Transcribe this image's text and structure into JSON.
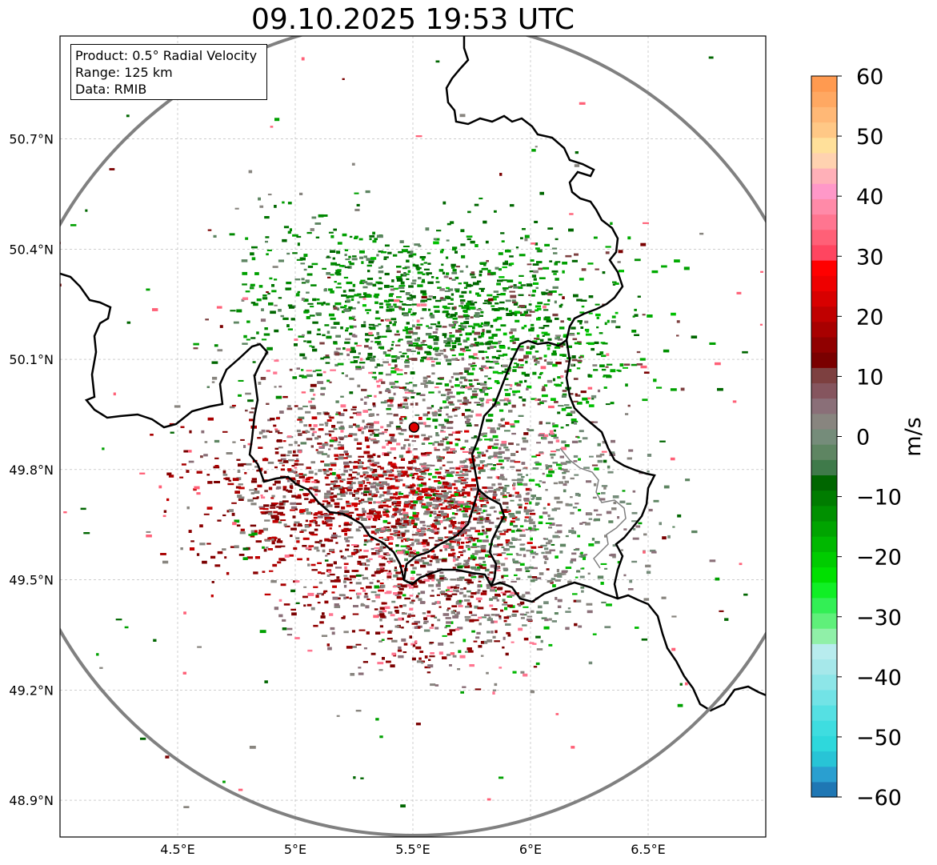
{
  "title": "09.10.2025 19:53 UTC",
  "info": {
    "product": "Product: 0.5° Radial Velocity",
    "range": "Range: 125 km",
    "source": "Data: RMIB"
  },
  "map": {
    "lon_range": [
      4.0,
      7.0
    ],
    "lat_range": [
      48.8,
      50.98
    ],
    "lon_ticks": [
      {
        "value": 4.5,
        "label": "4.5°E"
      },
      {
        "value": 5.0,
        "label": "5°E"
      },
      {
        "value": 5.5,
        "label": "5.5°E"
      },
      {
        "value": 6.0,
        "label": "6°E"
      },
      {
        "value": 6.5,
        "label": "6.5°E"
      }
    ],
    "lat_ticks": [
      {
        "value": 50.7,
        "label": "50.7°N"
      },
      {
        "value": 50.4,
        "label": "50.4°N"
      },
      {
        "value": 50.1,
        "label": "50.1°N"
      },
      {
        "value": 49.8,
        "label": "49.8°N"
      },
      {
        "value": 49.5,
        "label": "49.5°N"
      },
      {
        "value": 49.2,
        "label": "49.2°N"
      },
      {
        "value": 48.9,
        "label": "48.9°N"
      }
    ],
    "radar_site": {
      "lon": 5.505,
      "lat": 49.915
    },
    "range_km": 125
  },
  "colorbar": {
    "label": "m/s",
    "min": -60,
    "max": 60,
    "ticks": [
      {
        "value": 60,
        "label": "60"
      },
      {
        "value": 50,
        "label": "50"
      },
      {
        "value": 40,
        "label": "40"
      },
      {
        "value": 30,
        "label": "30"
      },
      {
        "value": 20,
        "label": "20"
      },
      {
        "value": 10,
        "label": "10"
      },
      {
        "value": 0,
        "label": "0"
      },
      {
        "value": -10,
        "label": "−10"
      },
      {
        "value": -20,
        "label": "−20"
      },
      {
        "value": -30,
        "label": "−30"
      },
      {
        "value": -40,
        "label": "−40"
      },
      {
        "value": -50,
        "label": "−50"
      },
      {
        "value": -60,
        "label": "−60"
      }
    ],
    "colors": [
      "#1f77b4",
      "#2a9fd0",
      "#28c4d6",
      "#2ed8dc",
      "#3edde0",
      "#55e0e3",
      "#72e3e6",
      "#8de6e8",
      "#a6e8ea",
      "#b8ecee",
      "#90f0a8",
      "#5ff07a",
      "#33ef55",
      "#10ef25",
      "#00e000",
      "#00cc00",
      "#00b800",
      "#00a400",
      "#009000",
      "#007c00",
      "#006600",
      "#3f7a4a",
      "#5e8562",
      "#758c7a",
      "#88857f",
      "#8a6f78",
      "#85555e",
      "#7d4040",
      "#7a0000",
      "#900000",
      "#a80000",
      "#c00000",
      "#d80000",
      "#ee0000",
      "#ff0000",
      "#ff4560",
      "#ff6077",
      "#ff7590",
      "#ff8aa8",
      "#ff98c8",
      "#ffb0b8",
      "#ffd2b0",
      "#ffe09a",
      "#ffc886",
      "#ffb876",
      "#ffa862",
      "#ff9a50"
    ]
  },
  "styles": {
    "range_ring": "#808080",
    "border": "#000000",
    "inner_border": "#808080",
    "grid": "#b0b0b0",
    "site_marker": "#e00000"
  }
}
